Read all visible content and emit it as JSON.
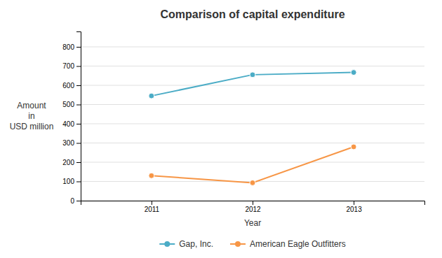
{
  "chart_data": {
    "type": "line",
    "title": "Comparison of capital expenditure",
    "xlabel": "Year",
    "ylabel": "Amount\nin\nUSD million",
    "x": [
      2011,
      2012,
      2013
    ],
    "series": [
      {
        "name": "Gap, Inc.",
        "color": "#4bacc6",
        "marker": "circle",
        "values": [
          545,
          655,
          667
        ]
      },
      {
        "name": "American Eagle Outfitters",
        "color": "#f79646",
        "marker": "circle",
        "values": [
          130,
          93,
          280
        ]
      }
    ],
    "xlim": [
      2010.3,
      2013.7
    ],
    "xticks": [
      2011,
      2012,
      2013
    ],
    "ylim": [
      0,
      880
    ],
    "yticks": [
      0,
      100,
      200,
      300,
      400,
      500,
      600,
      700,
      800
    ],
    "grid": true,
    "legend": "bottom"
  }
}
